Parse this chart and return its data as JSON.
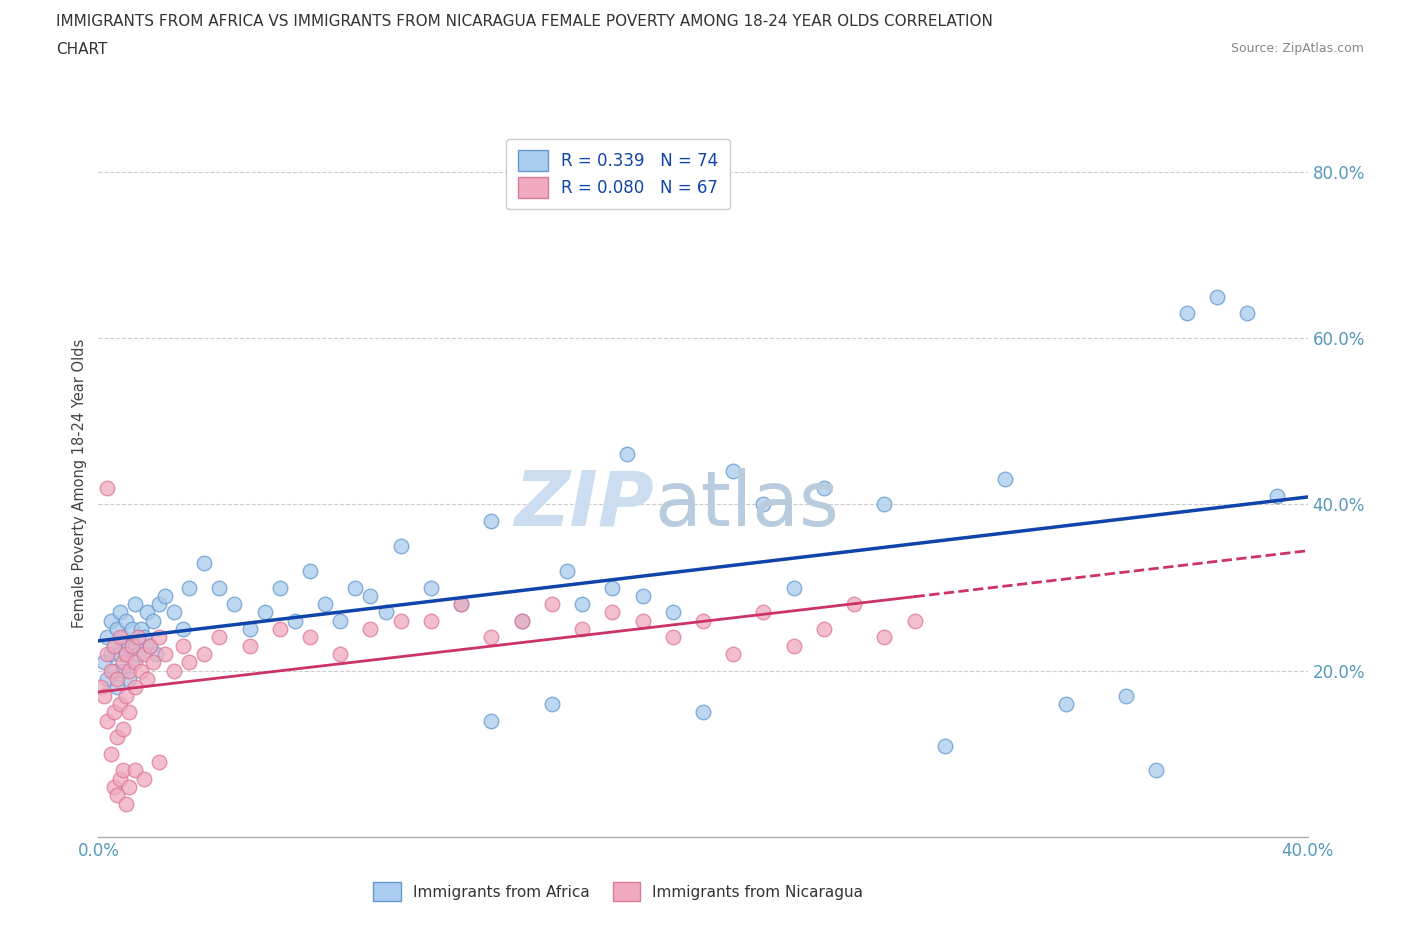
{
  "title_line1": "IMMIGRANTS FROM AFRICA VS IMMIGRANTS FROM NICARAGUA FEMALE POVERTY AMONG 18-24 YEAR OLDS CORRELATION",
  "title_line2": "CHART",
  "source_text": "Source: ZipAtlas.com",
  "ylabel": "Female Poverty Among 18-24 Year Olds",
  "xlim": [
    0.0,
    0.4
  ],
  "ylim": [
    0.0,
    0.85
  ],
  "grid_color": "#cccccc",
  "background_color": "#ffffff",
  "africa_color": "#aaccee",
  "africa_edge_color": "#6699cc",
  "nicaragua_color": "#f0aabd",
  "nicaragua_edge_color": "#dd7799",
  "africa_R": 0.339,
  "africa_N": 74,
  "nicaragua_R": 0.08,
  "nicaragua_N": 67,
  "africa_line_color": "#1144aa",
  "nicaragua_line_color": "#cc3366",
  "watermark_zip_color": "#ccddf0",
  "watermark_atlas_color": "#b8ccdd",
  "legend_label_africa": "Immigrants from Africa",
  "legend_label_nicaragua": "Immigrants from Nicaragua",
  "tick_color": "#5599bb",
  "africa_x": [
    0.002,
    0.003,
    0.003,
    0.004,
    0.004,
    0.005,
    0.005,
    0.006,
    0.006,
    0.007,
    0.007,
    0.008,
    0.008,
    0.009,
    0.009,
    0.01,
    0.01,
    0.011,
    0.011,
    0.012,
    0.012,
    0.013,
    0.014,
    0.015,
    0.016,
    0.017,
    0.018,
    0.019,
    0.02,
    0.022,
    0.025,
    0.028,
    0.03,
    0.035,
    0.04,
    0.045,
    0.05,
    0.055,
    0.06,
    0.065,
    0.07,
    0.075,
    0.08,
    0.085,
    0.09,
    0.095,
    0.1,
    0.11,
    0.12,
    0.13,
    0.14,
    0.15,
    0.155,
    0.16,
    0.17,
    0.18,
    0.19,
    0.2,
    0.21,
    0.22,
    0.23,
    0.24,
    0.26,
    0.28,
    0.3,
    0.32,
    0.34,
    0.35,
    0.36,
    0.37,
    0.38,
    0.39,
    0.175,
    0.13
  ],
  "africa_y": [
    0.21,
    0.24,
    0.19,
    0.22,
    0.26,
    0.2,
    0.23,
    0.25,
    0.18,
    0.22,
    0.27,
    0.2,
    0.24,
    0.22,
    0.26,
    0.23,
    0.19,
    0.25,
    0.21,
    0.23,
    0.28,
    0.22,
    0.25,
    0.24,
    0.27,
    0.23,
    0.26,
    0.22,
    0.28,
    0.29,
    0.27,
    0.25,
    0.3,
    0.33,
    0.3,
    0.28,
    0.25,
    0.27,
    0.3,
    0.26,
    0.32,
    0.28,
    0.26,
    0.3,
    0.29,
    0.27,
    0.35,
    0.3,
    0.28,
    0.14,
    0.26,
    0.16,
    0.32,
    0.28,
    0.3,
    0.29,
    0.27,
    0.15,
    0.44,
    0.4,
    0.3,
    0.42,
    0.4,
    0.11,
    0.43,
    0.16,
    0.17,
    0.08,
    0.63,
    0.65,
    0.63,
    0.41,
    0.46,
    0.38
  ],
  "nicaragua_x": [
    0.001,
    0.002,
    0.003,
    0.003,
    0.004,
    0.004,
    0.005,
    0.005,
    0.006,
    0.006,
    0.007,
    0.007,
    0.008,
    0.008,
    0.009,
    0.009,
    0.01,
    0.01,
    0.011,
    0.012,
    0.012,
    0.013,
    0.014,
    0.015,
    0.016,
    0.017,
    0.018,
    0.02,
    0.022,
    0.025,
    0.028,
    0.03,
    0.035,
    0.04,
    0.05,
    0.06,
    0.07,
    0.08,
    0.09,
    0.1,
    0.11,
    0.12,
    0.13,
    0.14,
    0.15,
    0.16,
    0.17,
    0.18,
    0.19,
    0.2,
    0.21,
    0.22,
    0.23,
    0.24,
    0.25,
    0.26,
    0.27,
    0.005,
    0.006,
    0.007,
    0.008,
    0.009,
    0.01,
    0.012,
    0.015,
    0.02,
    0.003
  ],
  "nicaragua_y": [
    0.18,
    0.17,
    0.22,
    0.14,
    0.2,
    0.1,
    0.23,
    0.15,
    0.19,
    0.12,
    0.24,
    0.16,
    0.21,
    0.13,
    0.22,
    0.17,
    0.2,
    0.15,
    0.23,
    0.21,
    0.18,
    0.24,
    0.2,
    0.22,
    0.19,
    0.23,
    0.21,
    0.24,
    0.22,
    0.2,
    0.23,
    0.21,
    0.22,
    0.24,
    0.23,
    0.25,
    0.24,
    0.22,
    0.25,
    0.26,
    0.26,
    0.28,
    0.24,
    0.26,
    0.28,
    0.25,
    0.27,
    0.26,
    0.24,
    0.26,
    0.22,
    0.27,
    0.23,
    0.25,
    0.28,
    0.24,
    0.26,
    0.06,
    0.05,
    0.07,
    0.08,
    0.04,
    0.06,
    0.08,
    0.07,
    0.09,
    0.42
  ]
}
